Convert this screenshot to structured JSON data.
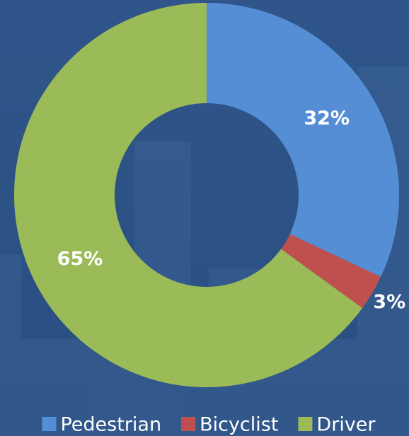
{
  "chart_data": {
    "type": "donut",
    "categories": [
      "Pedestrian",
      "Bicyclist",
      "Driver"
    ],
    "values": [
      32,
      3,
      65
    ],
    "value_labels": [
      "32%",
      "3%",
      "65%"
    ],
    "colors": [
      "#558ed5",
      "#c0504d",
      "#9bbb59"
    ],
    "legend": "bottom"
  }
}
